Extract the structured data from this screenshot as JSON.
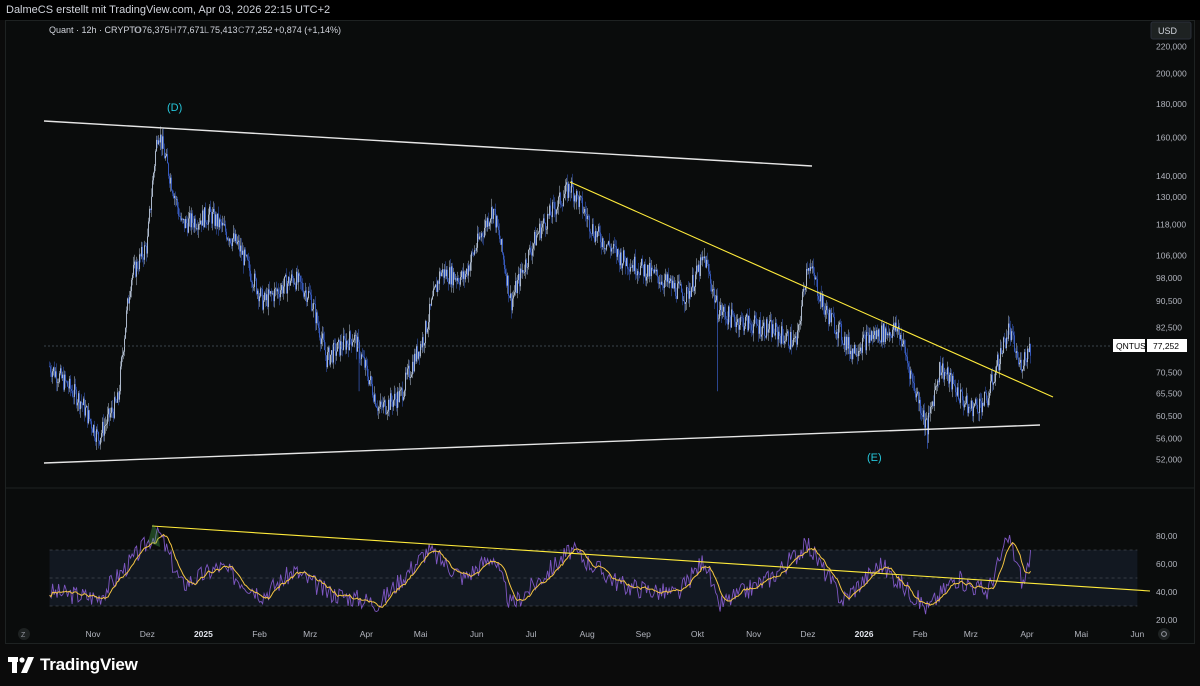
{
  "header": {
    "attribution": "DalmeCS erstellt mit TradingView.com, Apr 03, 2026 22:15 UTC+2"
  },
  "legend": {
    "symbol": "Quant · 12h · CRYPTO",
    "o_label": "O",
    "o_value": "76,375",
    "h_label": "H",
    "h_value": "77,671",
    "l_label": "L",
    "l_value": "75,413",
    "c_label": "C",
    "c_value": "77,252",
    "change": "+0,874 (+1,14%)"
  },
  "currency_button": "USD",
  "price_tag": {
    "symbol": "QNTUSD",
    "value": "77,252"
  },
  "annotations": {
    "d_label": "(D)",
    "e_label": "(E)"
  },
  "brand": {
    "name": "TradingView"
  },
  "buttons": {
    "zoom_icon_text": "Z",
    "settings_icon": "gear-icon"
  },
  "colors": {
    "background": "#0a0c0c",
    "candle_up": "#b8c4d8",
    "candle_down": "#3a5fc8",
    "trendline_white": "#e6e6e6",
    "trendline_yellow": "#ffeb3b",
    "label_cyan": "#26c6da",
    "rsi_line": "#7e57c2",
    "rsi_ma": "#f5c542"
  },
  "chart_data": [
    {
      "type": "candlestick",
      "title": "Quant · 12h · CRYPTO",
      "y_axis_labels": [
        "220,000",
        "200,000",
        "180,000",
        "160,000",
        "140,000",
        "130,000",
        "118,000",
        "106,000",
        "98,000",
        "90,500",
        "82,500",
        "70,500",
        "65,500",
        "60,500",
        "56,000",
        "52,000"
      ],
      "x_axis_labels": [
        "Nov",
        "Dez",
        "2025",
        "Feb",
        "Mrz",
        "Apr",
        "Mai",
        "Jun",
        "Jul",
        "Aug",
        "Sep",
        "Okt",
        "Nov",
        "Dez",
        "2026",
        "Feb",
        "Mrz",
        "Apr",
        "Mai",
        "Jun"
      ],
      "yscale": "log",
      "approx_close_path": [
        {
          "x": "2024-10-08",
          "y": 72
        },
        {
          "x": "2024-10-25",
          "y": 64
        },
        {
          "x": "2024-11-04",
          "y": 56
        },
        {
          "x": "2024-11-15",
          "y": 64
        },
        {
          "x": "2024-11-22",
          "y": 98
        },
        {
          "x": "2024-12-01",
          "y": 110
        },
        {
          "x": "2024-12-07",
          "y": 165
        },
        {
          "x": "2024-12-12",
          "y": 145
        },
        {
          "x": "2024-12-20",
          "y": 118
        },
        {
          "x": "2025-01-05",
          "y": 122
        },
        {
          "x": "2025-01-20",
          "y": 110
        },
        {
          "x": "2025-02-03",
          "y": 90
        },
        {
          "x": "2025-02-20",
          "y": 98
        },
        {
          "x": "2025-03-01",
          "y": 92
        },
        {
          "x": "2025-03-10",
          "y": 74
        },
        {
          "x": "2025-03-25",
          "y": 80
        },
        {
          "x": "2025-04-08",
          "y": 62
        },
        {
          "x": "2025-04-20",
          "y": 65
        },
        {
          "x": "2025-05-03",
          "y": 80
        },
        {
          "x": "2025-05-12",
          "y": 100
        },
        {
          "x": "2025-05-25",
          "y": 98
        },
        {
          "x": "2025-06-10",
          "y": 125
        },
        {
          "x": "2025-06-20",
          "y": 90
        },
        {
          "x": "2025-07-05",
          "y": 115
        },
        {
          "x": "2025-07-23",
          "y": 135
        },
        {
          "x": "2025-08-05",
          "y": 115
        },
        {
          "x": "2025-08-20",
          "y": 105
        },
        {
          "x": "2025-09-10",
          "y": 98
        },
        {
          "x": "2025-09-25",
          "y": 92
        },
        {
          "x": "2025-10-05",
          "y": 105
        },
        {
          "x": "2025-10-12",
          "y": 88
        },
        {
          "x": "2025-10-20",
          "y": 85
        },
        {
          "x": "2025-11-10",
          "y": 82
        },
        {
          "x": "2025-11-25",
          "y": 78
        },
        {
          "x": "2025-12-01",
          "y": 104
        },
        {
          "x": "2025-12-10",
          "y": 88
        },
        {
          "x": "2025-12-25",
          "y": 76
        },
        {
          "x": "2026-01-05",
          "y": 80
        },
        {
          "x": "2026-01-20",
          "y": 82
        },
        {
          "x": "2026-01-28",
          "y": 68
        },
        {
          "x": "2026-02-05",
          "y": 58
        },
        {
          "x": "2026-02-12",
          "y": 72
        },
        {
          "x": "2026-02-28",
          "y": 62
        },
        {
          "x": "2026-03-10",
          "y": 64
        },
        {
          "x": "2026-03-22",
          "y": 82
        },
        {
          "x": "2026-03-28",
          "y": 72
        },
        {
          "x": "2026-04-03",
          "y": 77.252
        }
      ]
    },
    {
      "type": "line",
      "title": "RSI",
      "y_axis_labels": [
        "80,00",
        "60,00",
        "40,00",
        "20,00"
      ],
      "ylim": [
        20,
        85
      ],
      "bands": [
        30,
        50,
        70
      ],
      "series": [
        {
          "values": [
            {
              "x": "2024-10-08",
              "y": 40
            },
            {
              "x": "2024-11-04",
              "y": 36
            },
            {
              "x": "2024-11-22",
              "y": 62
            },
            {
              "x": "2024-12-07",
              "y": 84
            },
            {
              "x": "2024-12-20",
              "y": 45
            },
            {
              "x": "2025-01-10",
              "y": 58
            },
            {
              "x": "2025-02-03",
              "y": 38
            },
            {
              "x": "2025-02-20",
              "y": 55
            },
            {
              "x": "2025-03-10",
              "y": 40
            },
            {
              "x": "2025-04-08",
              "y": 32
            },
            {
              "x": "2025-05-05",
              "y": 70
            },
            {
              "x": "2025-05-25",
              "y": 50
            },
            {
              "x": "2025-06-10",
              "y": 66
            },
            {
              "x": "2025-06-20",
              "y": 30
            },
            {
              "x": "2025-07-23",
              "y": 70
            },
            {
              "x": "2025-08-20",
              "y": 45
            },
            {
              "x": "2025-09-20",
              "y": 38
            },
            {
              "x": "2025-10-05",
              "y": 64
            },
            {
              "x": "2025-10-12",
              "y": 30
            },
            {
              "x": "2025-11-10",
              "y": 50
            },
            {
              "x": "2025-12-01",
              "y": 74
            },
            {
              "x": "2025-12-20",
              "y": 34
            },
            {
              "x": "2026-01-10",
              "y": 60
            },
            {
              "x": "2026-02-05",
              "y": 28
            },
            {
              "x": "2026-02-20",
              "y": 50
            },
            {
              "x": "2026-03-10",
              "y": 40
            },
            {
              "x": "2026-03-22",
              "y": 79
            },
            {
              "x": "2026-03-30",
              "y": 45
            },
            {
              "x": "2026-04-03",
              "y": 68
            }
          ]
        }
      ]
    }
  ]
}
